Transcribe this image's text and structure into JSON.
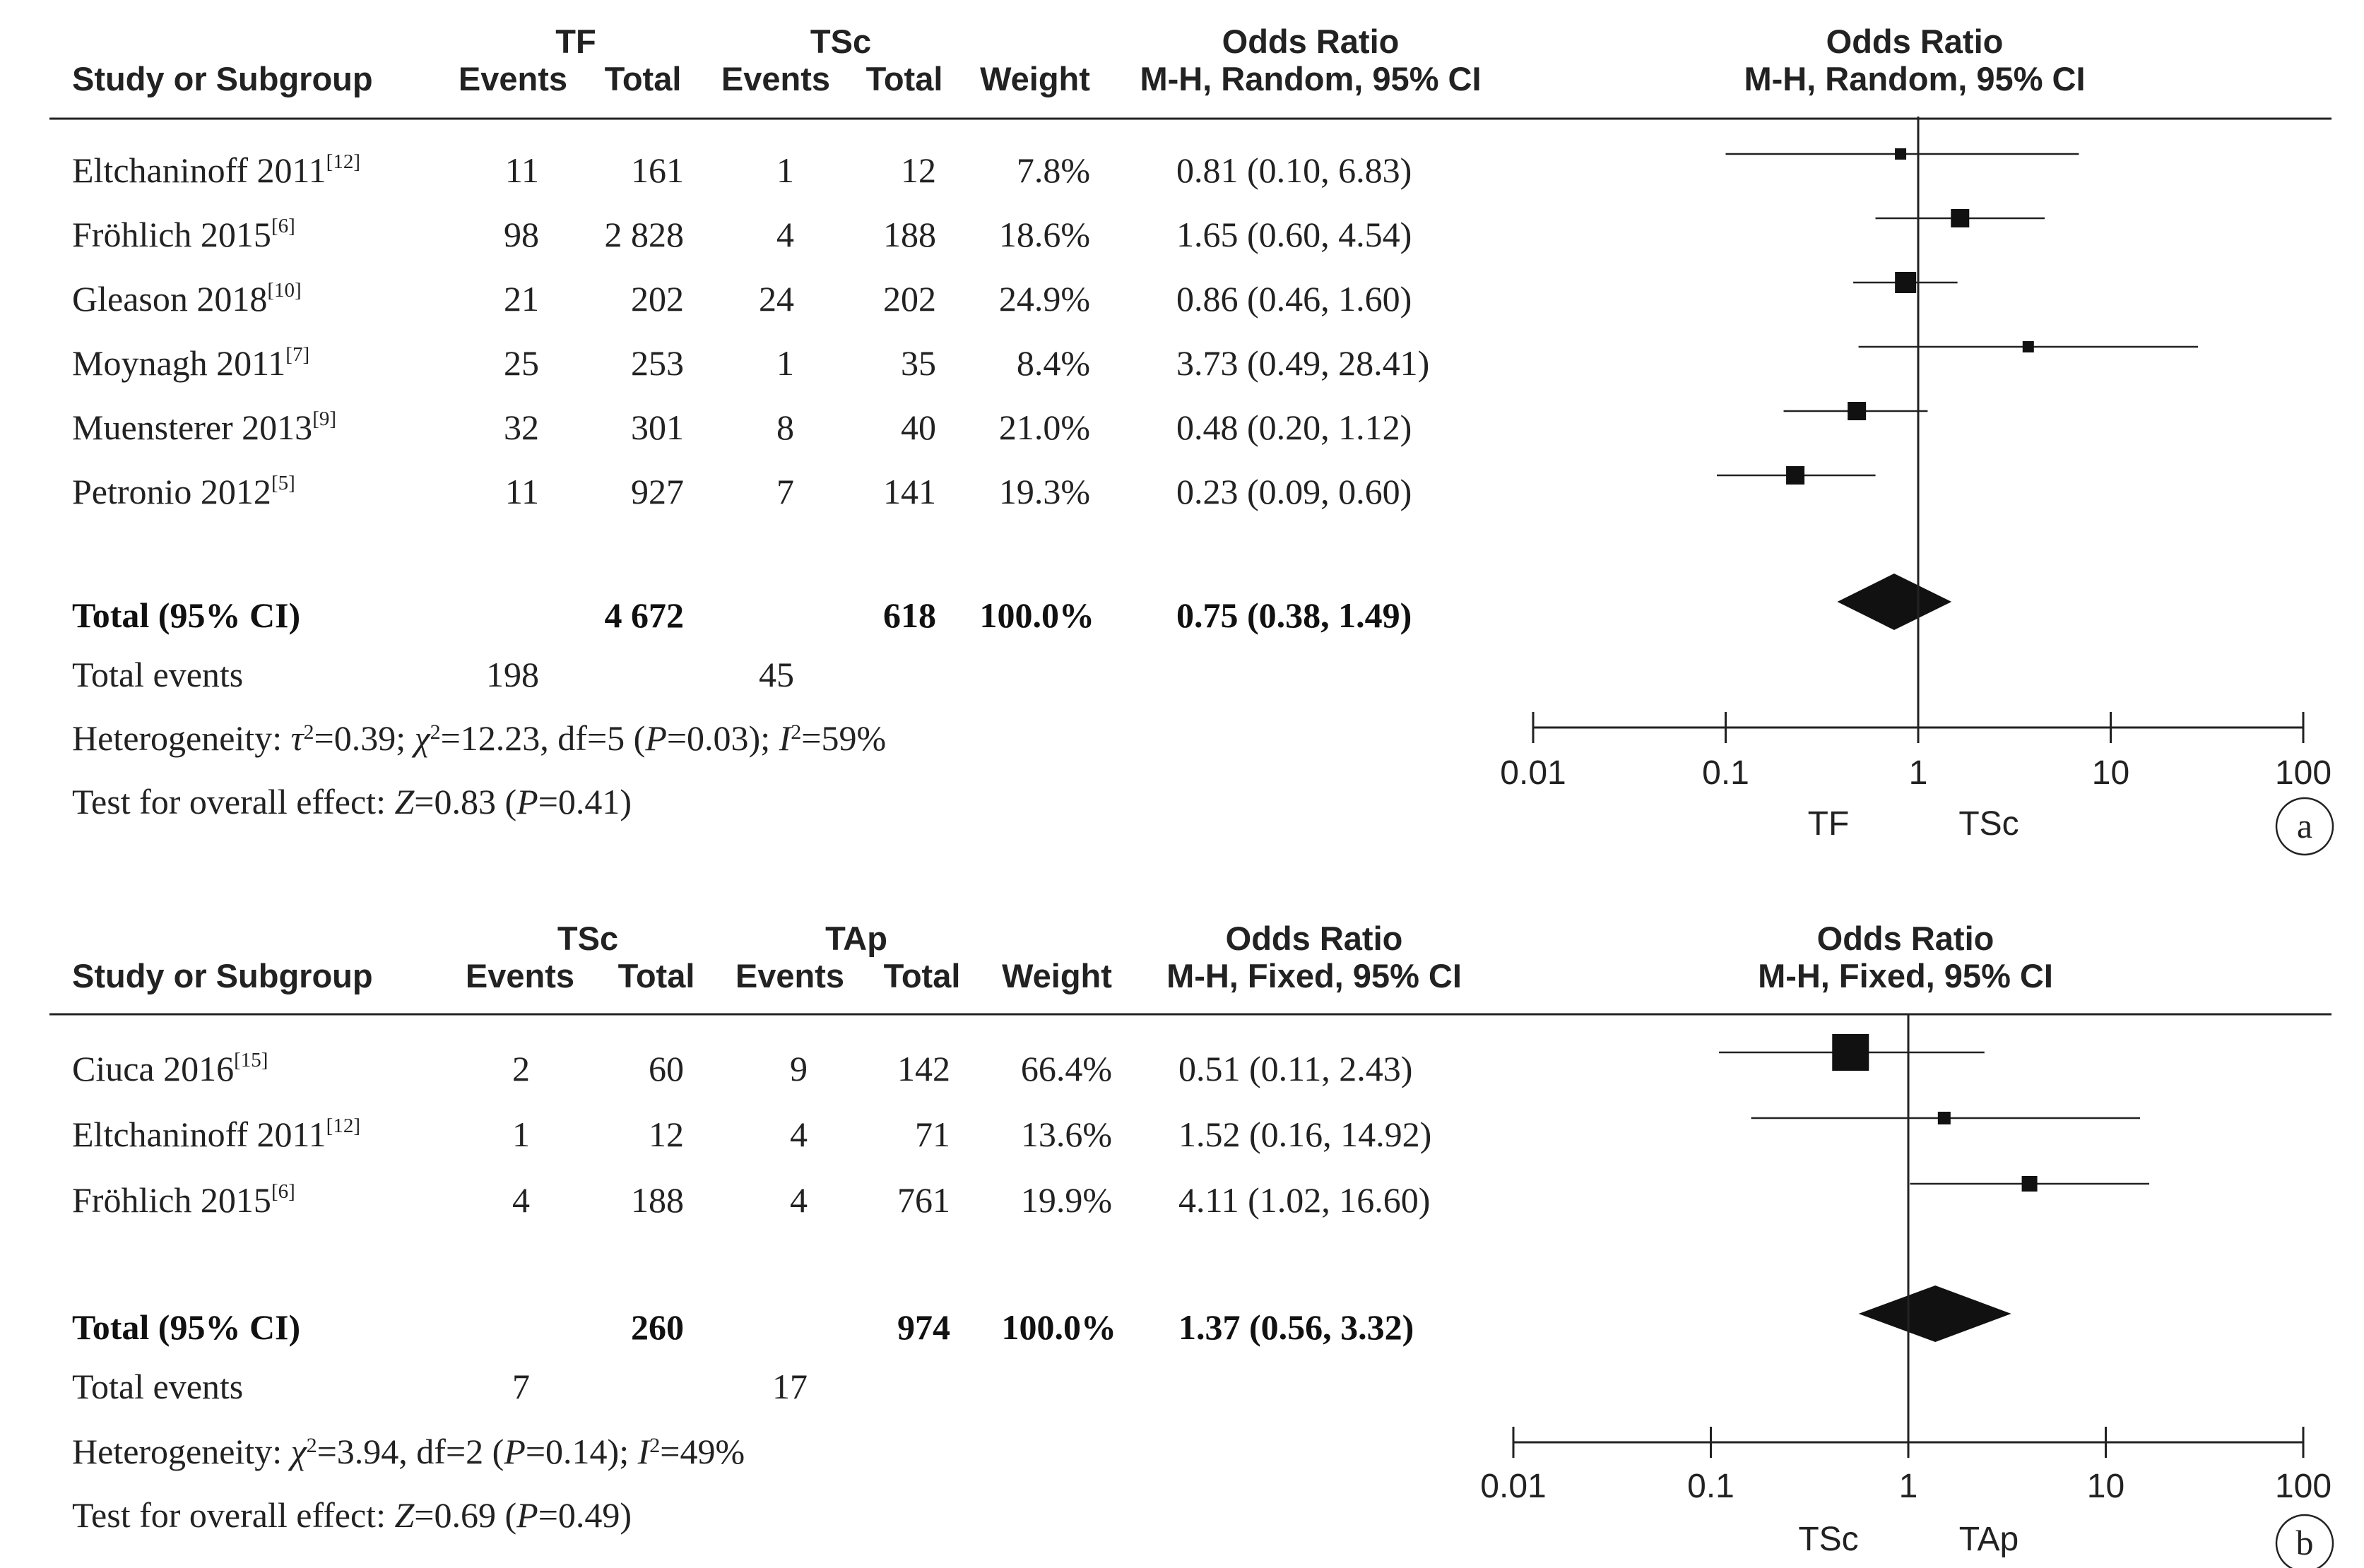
{
  "chart_data": [
    {
      "type": "forest",
      "panel_label": "a",
      "group1": "TF",
      "group2": "TSc",
      "headers": {
        "study": "Study or Subgroup",
        "events1": "Events",
        "total1": "Total",
        "events2": "Events",
        "total2": "Total",
        "weight": "Weight",
        "or_title": "Odds Ratio",
        "or_method": "M-H, Random, 95% CI",
        "plot_title": "Odds Ratio",
        "plot_method": "M-H, Random, 95% CI"
      },
      "studies": [
        {
          "name": "Eltchaninoff 2011",
          "ref": "[12]",
          "events1": "11",
          "total1": "161",
          "events2": "1",
          "total2": "12",
          "weight": "7.8%",
          "or_text": "0.81 (0.10, 6.83)",
          "or": 0.81,
          "lo": 0.1,
          "hi": 6.83
        },
        {
          "name": "Fröhlich 2015",
          "ref": "[6]",
          "events1": "98",
          "total1": "2 828",
          "events2": "4",
          "total2": "188",
          "weight": "18.6%",
          "or_text": "1.65 (0.60, 4.54)",
          "or": 1.65,
          "lo": 0.6,
          "hi": 4.54
        },
        {
          "name": "Gleason 2018",
          "ref": "[10]",
          "events1": "21",
          "total1": "202",
          "events2": "24",
          "total2": "202",
          "weight": "24.9%",
          "or_text": "0.86 (0.46, 1.60)",
          "or": 0.86,
          "lo": 0.46,
          "hi": 1.6
        },
        {
          "name": "Moynagh 2011",
          "ref": "[7]",
          "events1": "25",
          "total1": "253",
          "events2": "1",
          "total2": "35",
          "weight": "8.4%",
          "or_text": "3.73 (0.49, 28.41)",
          "or": 3.73,
          "lo": 0.49,
          "hi": 28.41
        },
        {
          "name": "Muensterer 2013",
          "ref": "[9]",
          "events1": "32",
          "total1": "301",
          "events2": "8",
          "total2": "40",
          "weight": "21.0%",
          "or_text": "0.48 (0.20, 1.12)",
          "or": 0.48,
          "lo": 0.2,
          "hi": 1.12
        },
        {
          "name": "Petronio 2012",
          "ref": "[5]",
          "events1": "11",
          "total1": "927",
          "events2": "7",
          "total2": "141",
          "weight": "19.3%",
          "or_text": "0.23 (0.09, 0.60)",
          "or": 0.23,
          "lo": 0.09,
          "hi": 0.6
        }
      ],
      "total": {
        "label": "Total (95% CI)",
        "total1": "4 672",
        "total2": "618",
        "weight": "100.0%",
        "or_text": "0.75 (0.38, 1.49)",
        "or": 0.75,
        "lo": 0.38,
        "hi": 1.49
      },
      "total_events": {
        "label": "Total events",
        "events1": "198",
        "events2": "45"
      },
      "heterogeneity": "Heterogeneity: τ²=0.39; χ²=12.23, df=5 (P=0.03); I²=59%",
      "overall_effect": "Test for overall effect: Z=0.83 (P=0.41)",
      "axis": {
        "scale": "log",
        "range": [
          0.01,
          100
        ],
        "ticks": [
          0.01,
          0.1,
          1,
          10,
          100
        ],
        "tick_labels": [
          "0.01",
          "0.1",
          "1",
          "10",
          "100"
        ],
        "favours_left": "TF",
        "favours_right": "TSc"
      }
    },
    {
      "type": "forest",
      "panel_label": "b",
      "group1": "TSc",
      "group2": "TAp",
      "headers": {
        "study": "Study or Subgroup",
        "events1": "Events",
        "total1": "Total",
        "events2": "Events",
        "total2": "Total",
        "weight": "Weight",
        "or_title": "Odds Ratio",
        "or_method": "M-H, Fixed, 95% CI",
        "plot_title": "Odds Ratio",
        "plot_method": "M-H, Fixed, 95% CI"
      },
      "studies": [
        {
          "name": "Ciuca 2016",
          "ref": "[15]",
          "events1": "2",
          "total1": "60",
          "events2": "9",
          "total2": "142",
          "weight": "66.4%",
          "or_text": "0.51 (0.11, 2.43)",
          "or": 0.51,
          "lo": 0.11,
          "hi": 2.43
        },
        {
          "name": "Eltchaninoff 2011",
          "ref": "[12]",
          "events1": "1",
          "total1": "12",
          "events2": "4",
          "total2": "71",
          "weight": "13.6%",
          "or_text": "1.52 (0.16, 14.92)",
          "or": 1.52,
          "lo": 0.16,
          "hi": 14.92
        },
        {
          "name": "Fröhlich 2015",
          "ref": "[6]",
          "events1": "4",
          "total1": "188",
          "events2": "4",
          "total2": "761",
          "weight": "19.9%",
          "or_text": "4.11 (1.02, 16.60)",
          "or": 4.11,
          "lo": 1.02,
          "hi": 16.6
        }
      ],
      "total": {
        "label": "Total (95% CI)",
        "total1": "260",
        "total2": "974",
        "weight": "100.0%",
        "or_text": "1.37 (0.56, 3.32)",
        "or": 1.37,
        "lo": 0.56,
        "hi": 3.32
      },
      "total_events": {
        "label": "Total events",
        "events1": "7",
        "events2": "17"
      },
      "heterogeneity": "Heterogeneity: χ²=3.94, df=2 (P=0.14); I²=49%",
      "overall_effect": "Test for overall effect: Z=0.69 (P=0.49)",
      "axis": {
        "scale": "log",
        "range": [
          0.01,
          100
        ],
        "ticks": [
          0.01,
          0.1,
          1,
          10,
          100
        ],
        "tick_labels": [
          "0.01",
          "0.1",
          "1",
          "10",
          "100"
        ],
        "favours_left": "TSc",
        "favours_right": "TAp"
      }
    }
  ]
}
